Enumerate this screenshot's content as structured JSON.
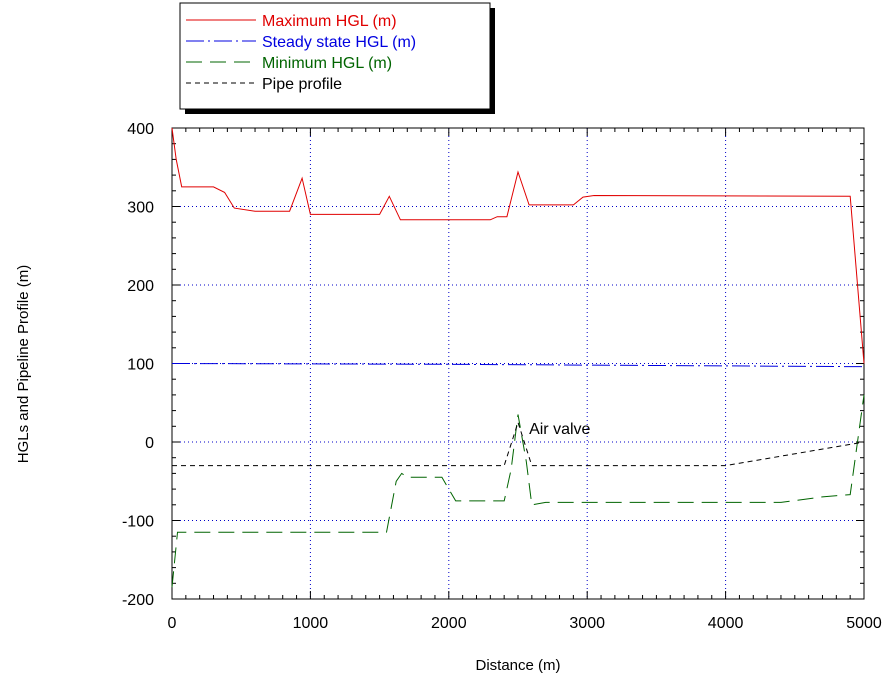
{
  "chart_data": {
    "type": "line",
    "xlabel": "Distance (m)",
    "ylabel": "HGLs and Pipeline Profile (m)",
    "xlim": [
      0,
      5000
    ],
    "ylim": [
      -200,
      400
    ],
    "xticks": [
      0,
      1000,
      2000,
      3000,
      4000,
      5000
    ],
    "yticks": [
      -200,
      -100,
      0,
      100,
      200,
      300,
      400
    ],
    "x_tick_labels": [
      "0",
      "1000",
      "2000",
      "3000",
      "4000",
      "5000"
    ],
    "y_tick_labels": [
      "-200",
      "-100",
      "0",
      "100",
      "200",
      "300",
      "400"
    ],
    "grid": true,
    "legend_position": "top-left, outside plot",
    "annotation": {
      "text": "Air valve",
      "x": 2580,
      "y": 10
    },
    "series": [
      {
        "name": "Maximum HGL (m)",
        "color": "#e00000",
        "dash": "solid",
        "points": [
          [
            0,
            400
          ],
          [
            30,
            360
          ],
          [
            70,
            325
          ],
          [
            300,
            325
          ],
          [
            380,
            318
          ],
          [
            450,
            298
          ],
          [
            600,
            294
          ],
          [
            850,
            294
          ],
          [
            940,
            336
          ],
          [
            1000,
            290
          ],
          [
            1500,
            290
          ],
          [
            1570,
            313
          ],
          [
            1650,
            283
          ],
          [
            2300,
            283
          ],
          [
            2350,
            287
          ],
          [
            2420,
            287
          ],
          [
            2500,
            344
          ],
          [
            2580,
            302
          ],
          [
            2900,
            302
          ],
          [
            2970,
            312
          ],
          [
            3050,
            314
          ],
          [
            4900,
            313
          ],
          [
            5000,
            100
          ]
        ]
      },
      {
        "name": "Steady state HGL (m)",
        "color": "#0000e0",
        "dash": "long-dash-dot",
        "points": [
          [
            0,
            100
          ],
          [
            1000,
            99.5
          ],
          [
            2000,
            99
          ],
          [
            3000,
            98
          ],
          [
            4000,
            97
          ],
          [
            4900,
            96
          ],
          [
            5000,
            96
          ]
        ]
      },
      {
        "name": "Minimum HGL (m)",
        "color": "#006400",
        "dash": "long-dash",
        "points": [
          [
            0,
            -185
          ],
          [
            40,
            -115
          ],
          [
            1550,
            -115
          ],
          [
            1620,
            -50
          ],
          [
            1660,
            -40
          ],
          [
            1700,
            -45
          ],
          [
            1950,
            -45
          ],
          [
            2050,
            -75
          ],
          [
            2400,
            -75
          ],
          [
            2450,
            -35
          ],
          [
            2500,
            35
          ],
          [
            2560,
            -25
          ],
          [
            2600,
            -80
          ],
          [
            2700,
            -77
          ],
          [
            4400,
            -77
          ],
          [
            4700,
            -70
          ],
          [
            4900,
            -67
          ],
          [
            5000,
            60
          ]
        ]
      },
      {
        "name": "Pipe profile",
        "color": "#000000",
        "dash": "short-dash",
        "points": [
          [
            0,
            -30
          ],
          [
            2400,
            -30
          ],
          [
            2500,
            25
          ],
          [
            2600,
            -30
          ],
          [
            4000,
            -30
          ],
          [
            5000,
            0
          ]
        ]
      }
    ]
  }
}
